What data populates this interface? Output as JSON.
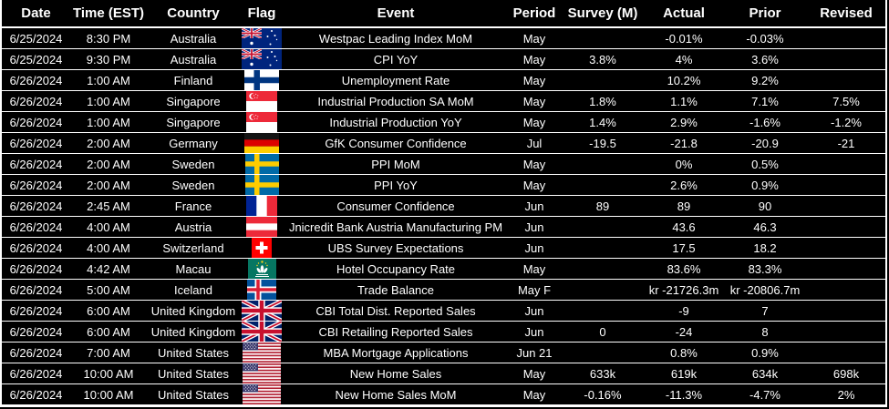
{
  "colors": {
    "background": "#000000",
    "text": "#ffffff",
    "gridline": "#ffffff"
  },
  "table": {
    "columns": [
      "Date",
      "Time (EST)",
      "Country",
      "Flag",
      "Event",
      "Period",
      "Survey (M)",
      "Actual",
      "Prior",
      "Revised"
    ],
    "rows": [
      {
        "date": "6/25/2024",
        "time": "8:30 PM",
        "country": "Australia",
        "flag": "australia",
        "event": "Westpac Leading Index MoM",
        "period": "May",
        "survey": "",
        "actual": "-0.01%",
        "prior": "-0.03%",
        "revised": ""
      },
      {
        "date": "6/25/2024",
        "time": "9:30 PM",
        "country": "Australia",
        "flag": "australia",
        "event": "CPI YoY",
        "period": "May",
        "survey": "3.8%",
        "actual": "4%",
        "prior": "3.6%",
        "revised": ""
      },
      {
        "date": "6/26/2024",
        "time": "1:00 AM",
        "country": "Finland",
        "flag": "finland",
        "event": "Unemployment Rate",
        "period": "May",
        "survey": "",
        "actual": "10.2%",
        "prior": "9.2%",
        "revised": ""
      },
      {
        "date": "6/26/2024",
        "time": "1:00 AM",
        "country": "Singapore",
        "flag": "singapore",
        "event": "Industrial Production SA MoM",
        "period": "May",
        "survey": "1.8%",
        "actual": "1.1%",
        "prior": "7.1%",
        "revised": "7.5%"
      },
      {
        "date": "6/26/2024",
        "time": "1:00 AM",
        "country": "Singapore",
        "flag": "singapore",
        "event": "Industrial Production YoY",
        "period": "May",
        "survey": "1.4%",
        "actual": "2.9%",
        "prior": "-1.6%",
        "revised": "-1.2%"
      },
      {
        "date": "6/26/2024",
        "time": "2:00 AM",
        "country": "Germany",
        "flag": "germany",
        "event": "GfK Consumer Confidence",
        "period": "Jul",
        "survey": "-19.5",
        "actual": "-21.8",
        "prior": "-20.9",
        "revised": "-21"
      },
      {
        "date": "6/26/2024",
        "time": "2:00 AM",
        "country": "Sweden",
        "flag": "sweden",
        "event": "PPI MoM",
        "period": "May",
        "survey": "",
        "actual": "0%",
        "prior": "0.5%",
        "revised": ""
      },
      {
        "date": "6/26/2024",
        "time": "2:00 AM",
        "country": "Sweden",
        "flag": "sweden",
        "event": "PPI YoY",
        "period": "May",
        "survey": "",
        "actual": "2.6%",
        "prior": "0.9%",
        "revised": ""
      },
      {
        "date": "6/26/2024",
        "time": "2:45 AM",
        "country": "France",
        "flag": "france",
        "event": "Consumer Confidence",
        "period": "Jun",
        "survey": "89",
        "actual": "89",
        "prior": "90",
        "revised": ""
      },
      {
        "date": "6/26/2024",
        "time": "4:00 AM",
        "country": "Austria",
        "flag": "austria",
        "event": "Jnicredit Bank Austria Manufacturing PM",
        "period": "Jun",
        "survey": "",
        "actual": "43.6",
        "prior": "46.3",
        "revised": ""
      },
      {
        "date": "6/26/2024",
        "time": "4:00 AM",
        "country": "Switzerland",
        "flag": "switzerland",
        "event": "UBS Survey Expectations",
        "period": "Jun",
        "survey": "",
        "actual": "17.5",
        "prior": "18.2",
        "revised": ""
      },
      {
        "date": "6/26/2024",
        "time": "4:42 AM",
        "country": "Macau",
        "flag": "macau",
        "event": "Hotel Occupancy Rate",
        "period": "May",
        "survey": "",
        "actual": "83.6%",
        "prior": "83.3%",
        "revised": ""
      },
      {
        "date": "6/26/2024",
        "time": "5:00 AM",
        "country": "Iceland",
        "flag": "iceland",
        "event": "Trade Balance",
        "period": "May F",
        "survey": "",
        "actual": "kr -21726.3m",
        "prior": "kr -20806.7m",
        "revised": ""
      },
      {
        "date": "6/26/2024",
        "time": "6:00 AM",
        "country": "United Kingdom",
        "flag": "uk",
        "event": "CBI Total Dist. Reported Sales",
        "period": "Jun",
        "survey": "",
        "actual": "-9",
        "prior": "7",
        "revised": ""
      },
      {
        "date": "6/26/2024",
        "time": "6:00 AM",
        "country": "United Kingdom",
        "flag": "uk",
        "event": "CBI Retailing Reported Sales",
        "period": "Jun",
        "survey": "0",
        "actual": "-24",
        "prior": "8",
        "revised": ""
      },
      {
        "date": "6/26/2024",
        "time": "7:00 AM",
        "country": "United States",
        "flag": "usa",
        "event": "MBA Mortgage Applications",
        "period": "Jun 21",
        "survey": "",
        "actual": "0.8%",
        "prior": "0.9%",
        "revised": ""
      },
      {
        "date": "6/26/2024",
        "time": "10:00 AM",
        "country": "United States",
        "flag": "usa",
        "event": "New Home Sales",
        "period": "May",
        "survey": "633k",
        "actual": "619k",
        "prior": "634k",
        "revised": "698k"
      },
      {
        "date": "6/26/2024",
        "time": "10:00 AM",
        "country": "United States",
        "flag": "usa",
        "event": "New Home Sales MoM",
        "period": "May",
        "survey": "-0.16%",
        "actual": "-11.3%",
        "prior": "-4.7%",
        "revised": "2%"
      }
    ]
  }
}
